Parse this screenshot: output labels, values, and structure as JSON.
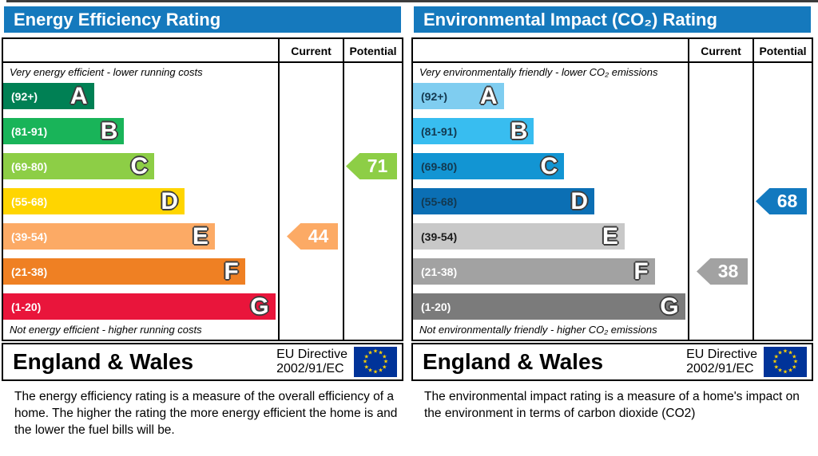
{
  "panels": [
    {
      "id": "energy-efficiency",
      "title": "Energy Efficiency Rating",
      "header_color": "#1579bd",
      "columns": {
        "current": "Current",
        "potential": "Potential"
      },
      "caption_top": "Very energy efficient - lower running costs",
      "caption_bottom": "Not energy efficient - higher running costs",
      "bands": [
        {
          "letter": "A",
          "range": "(92+)",
          "width": "33%",
          "color": "#008054",
          "label_color": "#ffffff"
        },
        {
          "letter": "B",
          "range": "(81-91)",
          "width": "44%",
          "color": "#19b459",
          "label_color": "#ffffff"
        },
        {
          "letter": "C",
          "range": "(69-80)",
          "width": "55%",
          "color": "#8dce46",
          "label_color": "#ffffff"
        },
        {
          "letter": "D",
          "range": "(55-68)",
          "width": "66%",
          "color": "#ffd500",
          "label_color": "#ffffff"
        },
        {
          "letter": "E",
          "range": "(39-54)",
          "width": "77%",
          "color": "#fcaa65",
          "label_color": "#ffffff"
        },
        {
          "letter": "F",
          "range": "(21-38)",
          "width": "88%",
          "color": "#ef8023",
          "label_color": "#ffffff"
        },
        {
          "letter": "G",
          "range": "(1-20)",
          "width": "99%",
          "color": "#e9153b",
          "label_color": "#ffffff"
        }
      ],
      "current": {
        "value": "44",
        "band": "E",
        "color": "#fcaa65",
        "row": 4
      },
      "potential": {
        "value": "71",
        "band": "C",
        "color": "#8dce46",
        "row": 2
      },
      "footer": {
        "region": "England & Wales",
        "directive_line1": "EU Directive",
        "directive_line2": "2002/91/EC"
      },
      "description": "The energy efficiency rating is a measure of the overall efficiency of a home.  The higher the rating the more energy efficient the home is and the lower the fuel bills will be."
    },
    {
      "id": "environmental-impact",
      "title": "Environmental Impact (CO₂) Rating",
      "header_color": "#1579bd",
      "columns": {
        "current": "Current",
        "potential": "Potential"
      },
      "caption_top": "Very environmentally friendly - lower CO₂ emissions",
      "caption_bottom": "Not environmentally friendly - higher CO₂ emissions",
      "bands": [
        {
          "letter": "A",
          "range": "(92+)",
          "width": "33%",
          "color": "#7fcdf0",
          "label_color": "#13384f"
        },
        {
          "letter": "B",
          "range": "(81-91)",
          "width": "44%",
          "color": "#38bdf0",
          "label_color": "#13384f"
        },
        {
          "letter": "C",
          "range": "(69-80)",
          "width": "55%",
          "color": "#1295d3",
          "label_color": "#13384f"
        },
        {
          "letter": "D",
          "range": "(55-68)",
          "width": "66%",
          "color": "#0b6fb4",
          "label_color": "#13384f"
        },
        {
          "letter": "E",
          "range": "(39-54)",
          "width": "77%",
          "color": "#c8c8c8",
          "label_color": "#1a1a1a"
        },
        {
          "letter": "F",
          "range": "(21-38)",
          "width": "88%",
          "color": "#a2a2a2",
          "label_color": "#ffffff"
        },
        {
          "letter": "G",
          "range": "(1-20)",
          "width": "99%",
          "color": "#7b7b7b",
          "label_color": "#ffffff"
        }
      ],
      "current": {
        "value": "38",
        "band": "F",
        "color": "#a2a2a2",
        "row": 5
      },
      "potential": {
        "value": "68",
        "band": "D",
        "color": "#1279bf",
        "row": 3
      },
      "footer": {
        "region": "England & Wales",
        "directive_line1": "EU Directive",
        "directive_line2": "2002/91/EC"
      },
      "description": "The environmental impact rating is a measure of a home's impact on the environment in terms of carbon dioxide (CO2)"
    }
  ],
  "flag_colors": {
    "background": "#003399",
    "star": "#ffd400"
  },
  "chart_data": [
    {
      "type": "bar",
      "title": "Energy Efficiency Rating",
      "categories": [
        "A (92+)",
        "B (81-91)",
        "C (69-80)",
        "D (55-68)",
        "E (39-54)",
        "F (21-38)",
        "G (1-20)"
      ],
      "band_bar_length_pct": [
        33,
        44,
        55,
        66,
        77,
        88,
        99
      ],
      "band_colors": [
        "#008054",
        "#19b459",
        "#8dce46",
        "#ffd500",
        "#fcaa65",
        "#ef8023",
        "#e9153b"
      ],
      "series": [
        {
          "name": "Current",
          "values": [
            44
          ],
          "band": "E"
        },
        {
          "name": "Potential",
          "values": [
            71
          ],
          "band": "C"
        }
      ],
      "annotations": [
        "Very energy efficient - lower running costs",
        "Not energy efficient - higher running costs"
      ],
      "footer": "England & Wales — EU Directive 2002/91/EC"
    },
    {
      "type": "bar",
      "title": "Environmental Impact (CO₂) Rating",
      "categories": [
        "A (92+)",
        "B (81-91)",
        "C (69-80)",
        "D (55-68)",
        "E (39-54)",
        "F (21-38)",
        "G (1-20)"
      ],
      "band_bar_length_pct": [
        33,
        44,
        55,
        66,
        77,
        88,
        99
      ],
      "band_colors": [
        "#7fcdf0",
        "#38bdf0",
        "#1295d3",
        "#0b6fb4",
        "#c8c8c8",
        "#a2a2a2",
        "#7b7b7b"
      ],
      "series": [
        {
          "name": "Current",
          "values": [
            38
          ],
          "band": "F"
        },
        {
          "name": "Potential",
          "values": [
            68
          ],
          "band": "D"
        }
      ],
      "annotations": [
        "Very environmentally friendly - lower CO₂ emissions",
        "Not environmentally friendly - higher CO₂ emissions"
      ],
      "footer": "England & Wales — EU Directive 2002/91/EC"
    }
  ]
}
